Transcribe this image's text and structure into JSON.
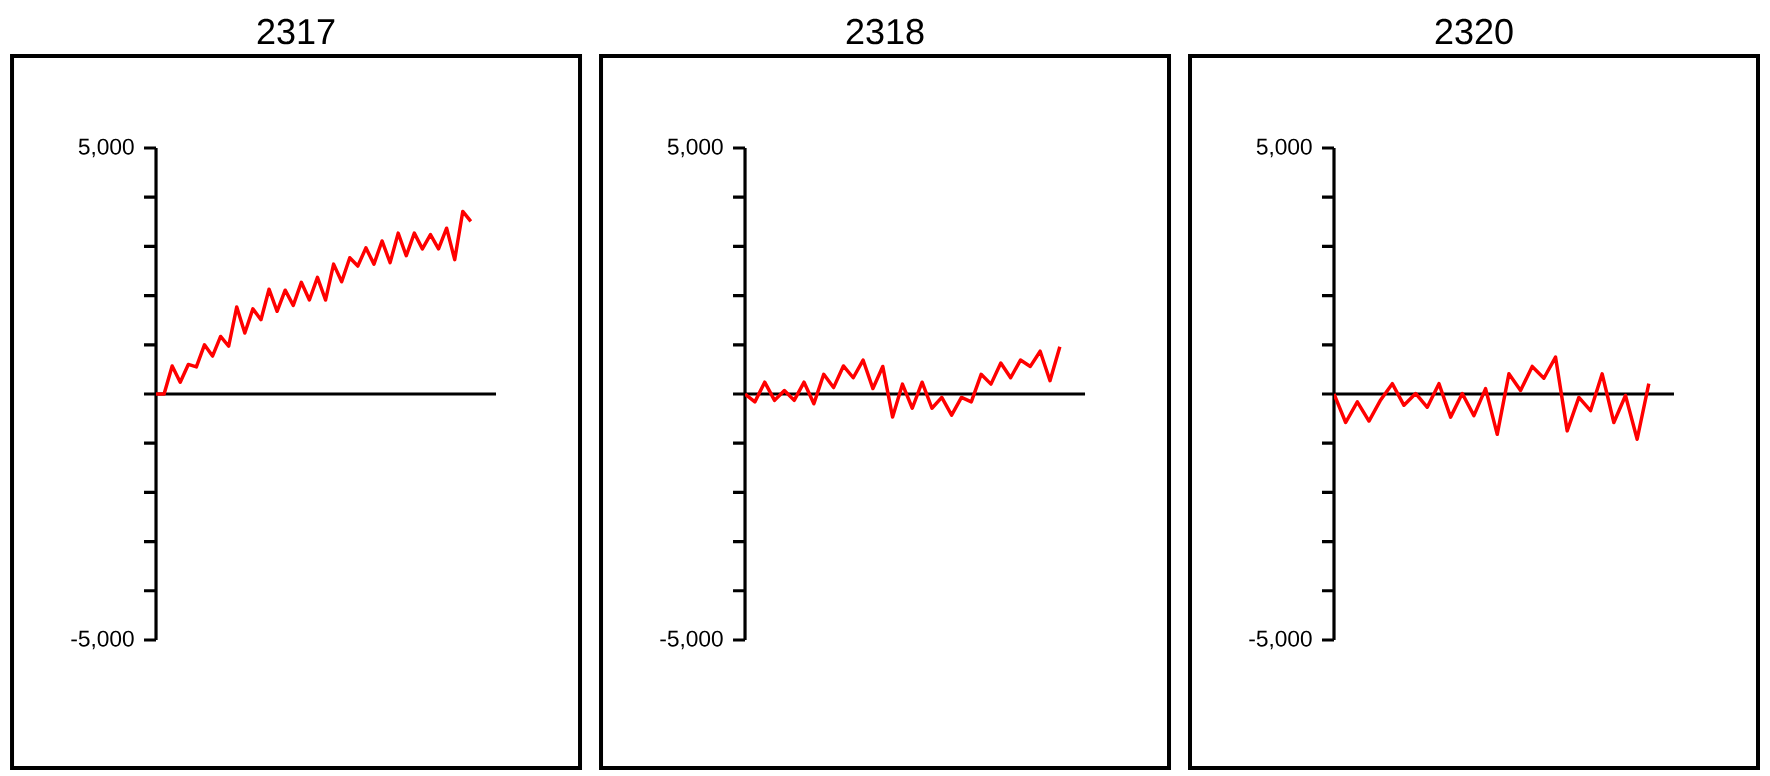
{
  "chart_data": [
    {
      "type": "line",
      "title": "2317",
      "categories": [
        null,
        null,
        null,
        null,
        null,
        null,
        null,
        null,
        null,
        null,
        null,
        null,
        null,
        null,
        null,
        null,
        null,
        null,
        null,
        null,
        null,
        null,
        null,
        null,
        null,
        null,
        null,
        null,
        null,
        null,
        null,
        null,
        null,
        null,
        null,
        null,
        null,
        null,
        null,
        null
      ],
      "tick_labels": "y",
      "ylim": [
        -5000,
        5000
      ],
      "yticks": [
        {
          "value": -5000,
          "label": "-5,000"
        },
        {
          "value": -4000,
          "label": null
        },
        {
          "value": -3000,
          "label": null
        },
        {
          "value": -2000,
          "label": null
        },
        {
          "value": -1000,
          "label": null
        },
        {
          "value": 0,
          "label": null
        },
        {
          "value": 1000,
          "label": null
        },
        {
          "value": 2000,
          "label": null
        },
        {
          "value": 3000,
          "label": null
        },
        {
          "value": 4000,
          "label": null
        },
        {
          "value": 5000,
          "label": "5,000"
        }
      ],
      "series": [
        {
          "color": "#ff0000",
          "values": [
            0,
            0,
            570,
            240,
            600,
            550,
            1000,
            770,
            1170,
            970,
            1770,
            1240,
            1730,
            1510,
            2130,
            1680,
            2110,
            1800,
            2270,
            1910,
            2370,
            1910,
            2640,
            2280,
            2770,
            2600,
            2970,
            2640,
            3110,
            2670,
            3270,
            2810,
            3270,
            2950,
            3240,
            2950,
            3370,
            2730,
            3710,
            3510
          ]
        }
      ]
    },
    {
      "type": "line",
      "title": "2318",
      "categories": [
        null,
        null,
        null,
        null,
        null,
        null,
        null,
        null,
        null,
        null,
        null,
        null,
        null,
        null,
        null,
        null,
        null,
        null,
        null,
        null,
        null,
        null,
        null,
        null,
        null,
        null,
        null,
        null,
        null,
        null,
        null,
        null,
        null
      ],
      "tick_labels": "y",
      "ylim": [
        -5000,
        5000
      ],
      "yticks": [
        {
          "value": -5000,
          "label": "-5,000"
        },
        {
          "value": -4000,
          "label": null
        },
        {
          "value": -3000,
          "label": null
        },
        {
          "value": -2000,
          "label": null
        },
        {
          "value": -1000,
          "label": null
        },
        {
          "value": 0,
          "label": null
        },
        {
          "value": 1000,
          "label": null
        },
        {
          "value": 2000,
          "label": null
        },
        {
          "value": 3000,
          "label": null
        },
        {
          "value": 4000,
          "label": null
        },
        {
          "value": 5000,
          "label": "5,000"
        }
      ],
      "series": [
        {
          "color": "#ff0000",
          "values": [
            0,
            -160,
            240,
            -130,
            70,
            -130,
            240,
            -200,
            400,
            130,
            570,
            330,
            690,
            110,
            560,
            -470,
            200,
            -290,
            240,
            -290,
            -70,
            -430,
            -70,
            -160,
            400,
            200,
            630,
            330,
            690,
            560,
            870,
            270,
            960
          ]
        }
      ]
    },
    {
      "type": "line",
      "title": "2320",
      "categories": [
        null,
        null,
        null,
        null,
        null,
        null,
        null,
        null,
        null,
        null,
        null,
        null,
        null,
        null,
        null,
        null,
        null,
        null,
        null,
        null,
        null,
        null,
        null,
        null,
        null,
        null,
        null,
        null
      ],
      "tick_labels": "y",
      "ylim": [
        -5000,
        5000
      ],
      "yticks": [
        {
          "value": -5000,
          "label": "-5,000"
        },
        {
          "value": -4000,
          "label": null
        },
        {
          "value": -3000,
          "label": null
        },
        {
          "value": -2000,
          "label": null
        },
        {
          "value": -1000,
          "label": null
        },
        {
          "value": 0,
          "label": null
        },
        {
          "value": 1000,
          "label": null
        },
        {
          "value": 2000,
          "label": null
        },
        {
          "value": 3000,
          "label": null
        },
        {
          "value": 4000,
          "label": null
        },
        {
          "value": 5000,
          "label": "5,000"
        }
      ],
      "series": [
        {
          "color": "#ff0000",
          "values": [
            0,
            -580,
            -160,
            -550,
            -120,
            210,
            -230,
            10,
            -270,
            210,
            -470,
            10,
            -440,
            110,
            -820,
            410,
            70,
            560,
            320,
            750,
            -750,
            -70,
            -340,
            410,
            -580,
            -30,
            -920,
            210
          ]
        }
      ]
    }
  ]
}
